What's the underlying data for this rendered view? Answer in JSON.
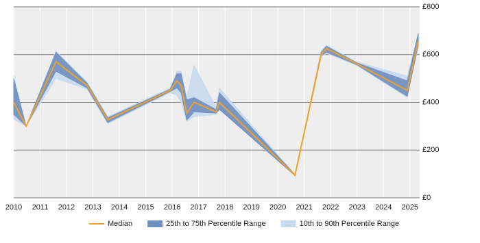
{
  "chart_data": {
    "type": "band-line",
    "x": [
      2010.0,
      2010.47,
      2011.6,
      2012.78,
      2013.56,
      2015.92,
      2016.18,
      2016.34,
      2016.55,
      2016.83,
      2017.66,
      2017.79,
      2020.65,
      2021.64,
      2021.84,
      2022.98,
      2024.9,
      2025.32
    ],
    "series": [
      {
        "name": "10th to 90th Percentile Range",
        "color": "#c6d9ee",
        "low": [
          330,
          300,
          500,
          455,
          310,
          440,
          430,
          400,
          320,
          340,
          350,
          370,
          92,
          590,
          605,
          555,
          420,
          635
        ],
        "high": [
          510,
          300,
          615,
          485,
          340,
          460,
          530,
          530,
          420,
          555,
          380,
          460,
          98,
          615,
          640,
          570,
          510,
          690
        ]
      },
      {
        "name": "25th to 75th Percentile Range",
        "color": "#6f8fbf",
        "low": [
          350,
          300,
          530,
          460,
          315,
          445,
          460,
          440,
          325,
          360,
          355,
          370,
          93,
          595,
          610,
          558,
          425,
          640
        ],
        "high": [
          500,
          300,
          610,
          480,
          335,
          455,
          520,
          520,
          410,
          420,
          370,
          440,
          97,
          610,
          635,
          566,
          490,
          690
        ]
      },
      {
        "name": "Median",
        "color": "#f0a028",
        "values": [
          400,
          300,
          570,
          470,
          327,
          450,
          490,
          470,
          355,
          400,
          360,
          400,
          95,
          600,
          625,
          562,
          450,
          657
        ]
      }
    ],
    "xlim": [
      2010,
      2025.37
    ],
    "xticks": [
      2010,
      2011,
      2012,
      2013,
      2014,
      2015,
      2016,
      2017,
      2018,
      2019,
      2020,
      2021,
      2022,
      2023,
      2024,
      2025
    ],
    "ylim": [
      0,
      800
    ],
    "yticks": [
      {
        "value": 0,
        "label": "£0"
      },
      {
        "value": 200,
        "label": "£200"
      },
      {
        "value": 400,
        "label": "£400"
      },
      {
        "value": 600,
        "label": "£600"
      },
      {
        "value": 800,
        "label": "£800"
      }
    ],
    "grid": true,
    "legend": "bottom"
  }
}
